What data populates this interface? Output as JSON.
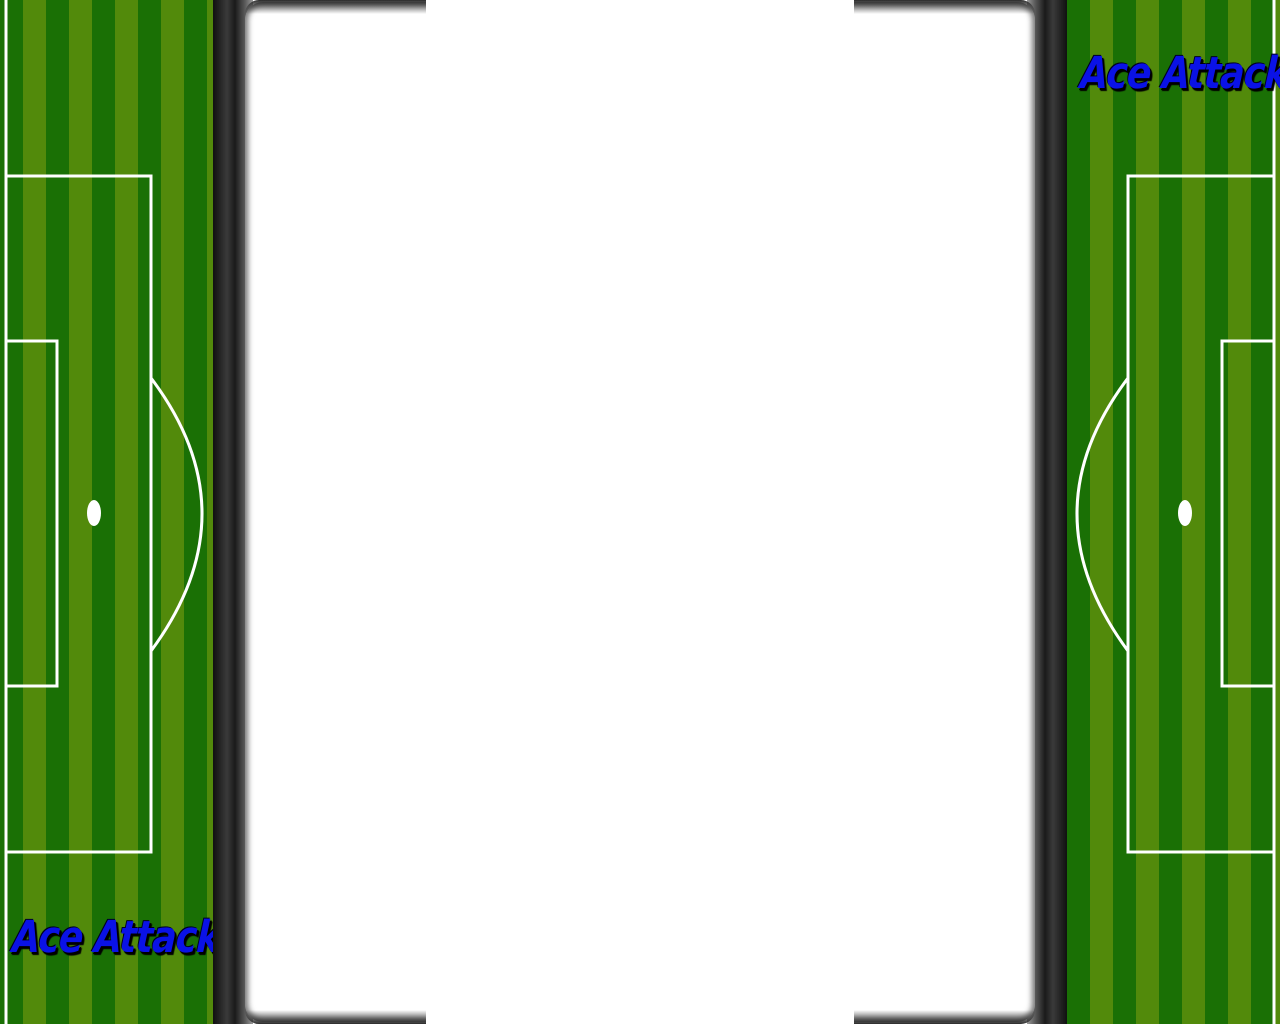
{
  "game": {
    "logo_text": "Ace Attacker"
  },
  "colors": {
    "grass_dark": "#1a7005",
    "grass_light": "#528a0b",
    "pitch_lines": "#ffffff",
    "logo_fill": "#0a12e6",
    "bezel": "#1a1a1a",
    "screen": "#ffffff"
  }
}
